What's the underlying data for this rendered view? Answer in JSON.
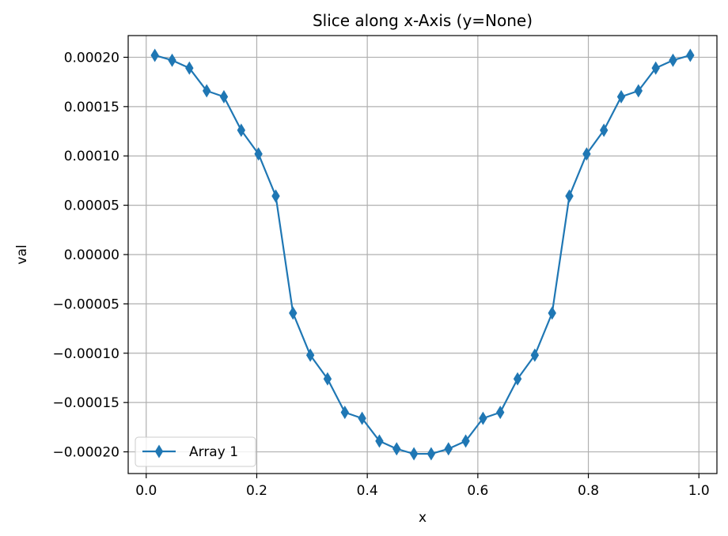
{
  "chart_data": {
    "type": "line",
    "title": "Slice along x-Axis (y=None)",
    "xlabel": "x",
    "ylabel": "val",
    "xlim": [
      -0.0326,
      1.0326
    ],
    "ylim": [
      -0.000222,
      0.000222
    ],
    "xticks": [
      0.0,
      0.2,
      0.4,
      0.6,
      0.8,
      1.0
    ],
    "xtick_labels": [
      "0.0",
      "0.2",
      "0.4",
      "0.6",
      "0.8",
      "1.0"
    ],
    "yticks": [
      0.0002,
      0.00015,
      0.0001,
      5e-05,
      0.0,
      -5e-05,
      -0.0001,
      -0.00015,
      -0.0002
    ],
    "ytick_labels": [
      "0.00020",
      "0.00015",
      "0.00010",
      "0.00005",
      "0.00000",
      "−0.00005",
      "−0.00010",
      "−0.00015",
      "−0.00020"
    ],
    "grid": true,
    "legend_position": "lower-left",
    "marker": "thin-diamond",
    "color": "#1f77b4",
    "series": [
      {
        "name": "Array 1",
        "x": [
          0.0156,
          0.0469,
          0.0781,
          0.1094,
          0.1406,
          0.1719,
          0.2031,
          0.2344,
          0.2656,
          0.2969,
          0.3281,
          0.3594,
          0.3906,
          0.4219,
          0.4531,
          0.4844,
          0.5156,
          0.5469,
          0.5781,
          0.6094,
          0.6406,
          0.6719,
          0.7031,
          0.7344,
          0.7656,
          0.7969,
          0.8281,
          0.8594,
          0.8906,
          0.9219,
          0.9531,
          0.9844
        ],
        "values": [
          0.000202,
          0.000197,
          0.000189,
          0.000166,
          0.00016,
          0.000126,
          0.000102,
          5.93e-05,
          -5.93e-05,
          -0.000102,
          -0.000126,
          -0.00016,
          -0.000166,
          -0.000189,
          -0.000197,
          -0.000202,
          -0.000202,
          -0.000197,
          -0.000189,
          -0.000166,
          -0.00016,
          -0.000126,
          -0.000102,
          -5.93e-05,
          5.93e-05,
          0.000102,
          0.000126,
          0.00016,
          0.000166,
          0.000189,
          0.000197,
          0.000202
        ]
      }
    ]
  }
}
